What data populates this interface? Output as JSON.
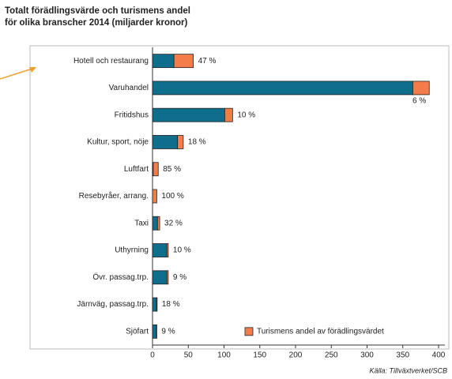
{
  "chart_data": {
    "type": "stacked-barh",
    "title": [
      "Totalt förädlingsvärde och turismens andel",
      "för olika branscher 2014 (miljarder kronor)"
    ],
    "categories": [
      "Hotell och restaurang",
      "Varuhandel",
      "Fritidshus",
      "Kultur, sport, nöje",
      "Luftfart",
      "Resebyråer, arrang.",
      "Taxi",
      "Uthyrning",
      "Övr. passag.trp.",
      "Järnväg, passag.trp.",
      "Sjöfart"
    ],
    "series": [
      {
        "color": "#0f6e8c",
        "values": [
          30,
          364,
          101,
          35,
          1,
          0,
          7,
          20,
          20,
          5.5,
          5.5
        ]
      },
      {
        "name": "Turismens andel av förädlingsvärdet",
        "color": "#f47b4a",
        "values": [
          27,
          23,
          11,
          8,
          7,
          6,
          3,
          2,
          2,
          1,
          0.5
        ]
      }
    ],
    "share_labels": [
      "47 %",
      "6 %",
      "10 %",
      "18 %",
      "85 %",
      "100 %",
      "32 %",
      "10 %",
      "9 %",
      "18 %",
      "9 %"
    ],
    "xlim": [
      0,
      400
    ],
    "xticks": [
      0,
      50,
      100,
      150,
      200,
      250,
      300,
      350,
      400
    ],
    "legend": "lower right",
    "source": "Källa: Tillväxtverket/SCB"
  }
}
